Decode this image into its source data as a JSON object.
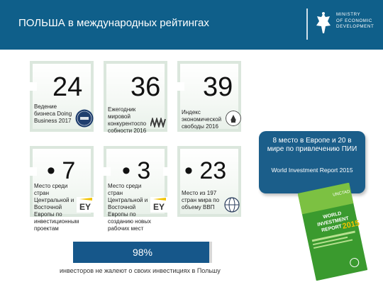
{
  "header": {
    "title": "ПОЛЬША в международных рейтингах",
    "logo": {
      "line1": "MINISTRY",
      "line2": "OF ECONOMIC",
      "line3": "DEVELOPMENT"
    },
    "colors": {
      "banner": "#0f5f8a",
      "card_border": "#dbe7dd"
    }
  },
  "cards": [
    {
      "value": "24",
      "desc": "Ведение бизнеса Doing Business 2017",
      "badge": "Doing Business"
    },
    {
      "value": "36",
      "desc": "Ежегодник мировой конкурентоспо собности 2016",
      "badge": "IMD"
    },
    {
      "value": "39",
      "desc": "Индекс экономической свободы 2016",
      "badge": "Index of Economic Freedom"
    },
    {
      "value": "• 7",
      "desc": "Место среди стран Центральной и Восточной Европы по инвестиционным проектам",
      "badge": "EY"
    },
    {
      "value": "• 3",
      "desc": "Место среди стран Центральной и Восточной Европы по созданию новых рабочих мест",
      "badge": "EY"
    },
    {
      "value": "• 23",
      "desc": "Место из 197 стран мира по объему ВВП",
      "badge": "World Bank"
    }
  ],
  "info": {
    "main": "8 место в Европе и 20 в мире по привлечению ПИИ",
    "source": "World Investment Report 2015"
  },
  "book": {
    "brand": "UNCTAD",
    "title1": "WORLD",
    "title2": "INVESTMENT",
    "title3": "REPORT",
    "year": "2015"
  },
  "investors": {
    "percent_label": "98%",
    "fill_fraction": 0.98,
    "caption": "инвесторов не жалеют о своих инвестициях в Польшу"
  }
}
